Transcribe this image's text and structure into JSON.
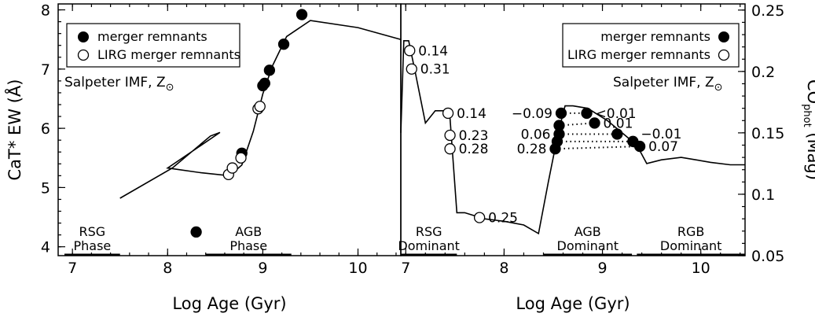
{
  "chart_data": [
    {
      "type": "line",
      "xlabel": "Log Age (Gyr)",
      "ylabel": "CaT* EW (Å)",
      "xlim": [
        6.85,
        10.45
      ],
      "ylim": [
        3.85,
        8.1
      ],
      "xticks": [
        7,
        8,
        9,
        10
      ],
      "yticks": [
        4,
        5,
        6,
        7,
        8
      ],
      "model_line": [
        [
          7.5,
          4.82
        ],
        [
          8.05,
          5.33
        ],
        [
          8.45,
          5.87
        ],
        [
          8.55,
          5.93
        ],
        [
          8.0,
          5.33
        ],
        [
          8.35,
          5.25
        ],
        [
          8.65,
          5.2
        ],
        [
          8.78,
          5.38
        ],
        [
          8.9,
          5.95
        ],
        [
          9.0,
          6.58
        ],
        [
          9.1,
          7.05
        ],
        [
          9.25,
          7.55
        ],
        [
          9.5,
          7.82
        ],
        [
          10.0,
          7.7
        ],
        [
          10.45,
          7.5
        ]
      ],
      "series": [
        {
          "name": "merger remnants",
          "marker": "filled-circle",
          "points": [
            [
              8.3,
              4.25
            ],
            [
              8.78,
              5.58
            ],
            [
              9.0,
              6.72
            ],
            [
              9.02,
              6.76
            ],
            [
              9.07,
              6.98
            ],
            [
              9.22,
              7.42
            ],
            [
              9.41,
              7.92
            ]
          ]
        },
        {
          "name": "LIRG merger remnants",
          "marker": "open-circle",
          "points": [
            [
              8.64,
              5.22
            ],
            [
              8.68,
              5.33
            ],
            [
              8.77,
              5.5
            ],
            [
              8.95,
              6.33
            ],
            [
              8.97,
              6.37
            ]
          ]
        }
      ],
      "annotation": "Salpeter IMF, Z",
      "annotation_sub": "⊙",
      "legend_position": "top-left",
      "phases": [
        {
          "line1": "RSG",
          "line2": "Phase",
          "x_range": [
            6.85,
            7.5
          ]
        },
        {
          "line1": "AGB",
          "line2": "Phase",
          "x_range": [
            8.4,
            9.3
          ]
        }
      ]
    },
    {
      "type": "line",
      "xlabel": "Log Age (Gyr)",
      "ylabel": "CO",
      "ylabel_sub": "phot",
      "ylabel_suffix": " (Mag)",
      "xlim": [
        6.95,
        10.45
      ],
      "ylim": [
        0.05,
        0.255
      ],
      "xticks": [
        7,
        8,
        9,
        10
      ],
      "yticks": [
        0.05,
        0.1,
        0.15,
        0.2,
        0.25
      ],
      "model_line": [
        [
          6.95,
          0.15
        ],
        [
          6.98,
          0.225
        ],
        [
          7.03,
          0.225
        ],
        [
          7.1,
          0.198
        ],
        [
          7.2,
          0.158
        ],
        [
          7.3,
          0.168
        ],
        [
          7.4,
          0.168
        ],
        [
          7.45,
          0.162
        ],
        [
          7.52,
          0.085
        ],
        [
          7.6,
          0.085
        ],
        [
          7.8,
          0.08
        ],
        [
          8.0,
          0.078
        ],
        [
          8.2,
          0.075
        ],
        [
          8.35,
          0.068
        ],
        [
          8.45,
          0.11
        ],
        [
          8.55,
          0.15
        ],
        [
          8.62,
          0.172
        ],
        [
          8.7,
          0.172
        ],
        [
          8.85,
          0.17
        ],
        [
          9.05,
          0.16
        ],
        [
          9.2,
          0.15
        ],
        [
          9.35,
          0.14
        ],
        [
          9.45,
          0.125
        ],
        [
          9.6,
          0.128
        ],
        [
          9.8,
          0.13
        ],
        [
          9.95,
          0.128
        ],
        [
          10.1,
          0.126
        ],
        [
          10.3,
          0.124
        ],
        [
          10.45,
          0.124
        ]
      ],
      "series": [
        {
          "name": "merger remnants",
          "marker": "filled-circle",
          "points": [
            [
              8.58,
              0.166
            ],
            [
              8.56,
              0.156
            ],
            [
              8.56,
              0.149
            ],
            [
              8.54,
              0.143
            ],
            [
              8.52,
              0.137
            ],
            [
              8.84,
              0.166
            ],
            [
              8.92,
              0.158
            ],
            [
              9.15,
              0.149
            ],
            [
              9.31,
              0.143
            ],
            [
              9.38,
              0.139
            ]
          ]
        },
        {
          "name": "LIRG merger remnants",
          "marker": "open-circle",
          "points": [
            [
              7.04,
              0.217
            ],
            [
              7.06,
              0.202
            ],
            [
              7.43,
              0.166
            ],
            [
              7.45,
              0.148
            ],
            [
              7.45,
              0.137
            ],
            [
              7.75,
              0.081
            ]
          ]
        }
      ],
      "dotted_links": [
        [
          [
            8.58,
            0.166
          ],
          [
            8.84,
            0.166
          ]
        ],
        [
          [
            8.56,
            0.156
          ],
          [
            8.92,
            0.158
          ]
        ],
        [
          [
            8.56,
            0.149
          ],
          [
            9.15,
            0.149
          ]
        ],
        [
          [
            8.54,
            0.143
          ],
          [
            9.31,
            0.143
          ]
        ],
        [
          [
            8.52,
            0.137
          ],
          [
            9.38,
            0.139
          ]
        ]
      ],
      "labels": [
        {
          "text": "0.14",
          "x": 7.04,
          "y": 0.217,
          "side": "right"
        },
        {
          "text": "0.31",
          "x": 7.06,
          "y": 0.202,
          "side": "right"
        },
        {
          "text": "0.14",
          "x": 7.43,
          "y": 0.166,
          "side": "right"
        },
        {
          "text": "0.23",
          "x": 7.45,
          "y": 0.148,
          "side": "right"
        },
        {
          "text": "0.28",
          "x": 7.45,
          "y": 0.137,
          "side": "right"
        },
        {
          "text": "0.25",
          "x": 7.75,
          "y": 0.081,
          "side": "right"
        },
        {
          "text": "−0.09",
          "x": 8.58,
          "y": 0.166,
          "side": "left"
        },
        {
          "text": "0.06",
          "x": 8.56,
          "y": 0.149,
          "side": "left"
        },
        {
          "text": "0.28",
          "x": 8.52,
          "y": 0.137,
          "side": "left"
        },
        {
          "text": "<0.01",
          "x": 8.84,
          "y": 0.166,
          "side": "right"
        },
        {
          "text": "0.01",
          "x": 8.92,
          "y": 0.158,
          "side": "right"
        },
        {
          "text": "−0.01",
          "x": 9.31,
          "y": 0.143,
          "side": "right-up"
        },
        {
          "text": "0.07",
          "x": 9.38,
          "y": 0.139,
          "side": "right"
        }
      ],
      "annotation": "Salpeter IMF, Z",
      "annotation_sub": "⊙",
      "legend_position": "top-right",
      "phases": [
        {
          "line1": "RSG",
          "line2": "Dominant",
          "x_range": [
            6.95,
            7.52
          ]
        },
        {
          "line1": "AGB",
          "line2": "Dominant",
          "x_range": [
            8.4,
            9.3
          ]
        },
        {
          "line1": "RGB",
          "line2": "Dominant",
          "x_range": [
            9.35,
            10.45
          ]
        }
      ]
    }
  ],
  "colors": {
    "ink": "#000000",
    "background": "#ffffff"
  }
}
